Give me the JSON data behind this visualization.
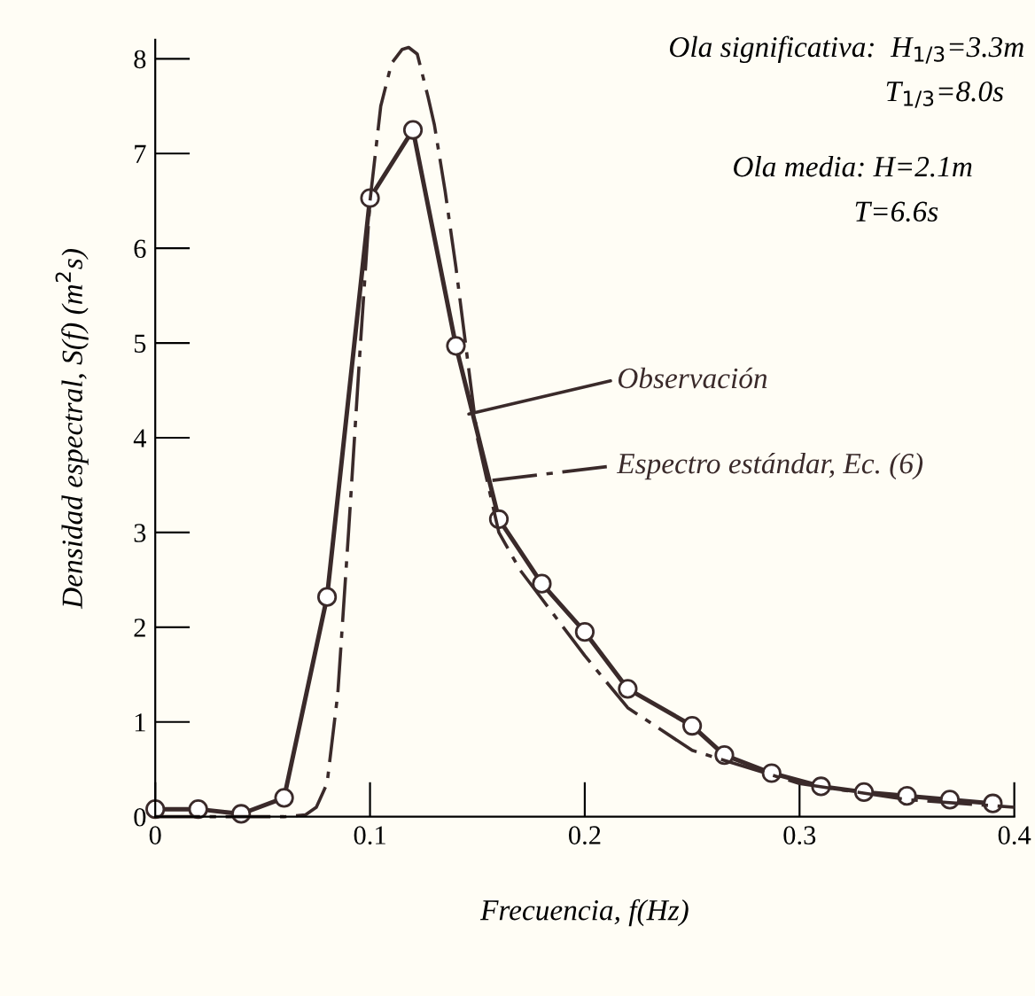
{
  "chart_data": {
    "type": "line",
    "xlabel": "Frecuencia, f(Hz)",
    "ylabel": "Densidad espectral, S(f) (m$^{2}$s)",
    "xlim": [
      0,
      0.4
    ],
    "ylim": [
      0,
      8.2
    ],
    "xticks": [
      0,
      0.1,
      0.2,
      0.3,
      0.4
    ],
    "yticks": [
      0,
      1,
      2,
      3,
      4,
      5,
      6,
      7,
      8
    ],
    "grid": false,
    "legend": "right",
    "series": [
      {
        "name": "Observación",
        "color": "#3a2a2a",
        "marker": "circle",
        "line_style": "solid",
        "x": [
          0.0,
          0.02,
          0.04,
          0.06,
          0.08,
          0.1,
          0.12,
          0.14,
          0.16,
          0.18,
          0.2,
          0.22,
          0.25,
          0.265,
          0.287,
          0.31,
          0.33,
          0.35,
          0.37,
          0.39
        ],
        "values": [
          0.08,
          0.08,
          0.03,
          0.2,
          2.32,
          6.53,
          7.25,
          4.97,
          3.14,
          2.46,
          1.95,
          1.35,
          0.96,
          0.65,
          0.46,
          0.32,
          0.26,
          0.22,
          0.18,
          0.14
        ]
      },
      {
        "name": "Espectro estándar, Ec. (6)",
        "color": "#3a2a2a",
        "marker": "none",
        "line_style": "dashed",
        "x": [
          0.0,
          0.06,
          0.07,
          0.075,
          0.08,
          0.085,
          0.09,
          0.095,
          0.1,
          0.105,
          0.11,
          0.115,
          0.118,
          0.122,
          0.127,
          0.13,
          0.135,
          0.14,
          0.15,
          0.16,
          0.17,
          0.18,
          0.19,
          0.2,
          0.22,
          0.25,
          0.3,
          0.35,
          0.4
        ],
        "values": [
          0.0,
          0.0,
          0.02,
          0.1,
          0.35,
          1.3,
          3.0,
          4.8,
          6.5,
          7.5,
          7.95,
          8.1,
          8.12,
          8.05,
          7.6,
          7.3,
          6.6,
          5.8,
          4.0,
          3.0,
          2.6,
          2.3,
          2.0,
          1.7,
          1.15,
          0.7,
          0.35,
          0.18,
          0.1
        ]
      }
    ],
    "annotations": [
      "Ola significativa:  H$_{1/3}$=3.3m",
      "T$_{1/3}$=8.0s",
      "Ola media: H=2.1m",
      "T=6.6s"
    ]
  }
}
